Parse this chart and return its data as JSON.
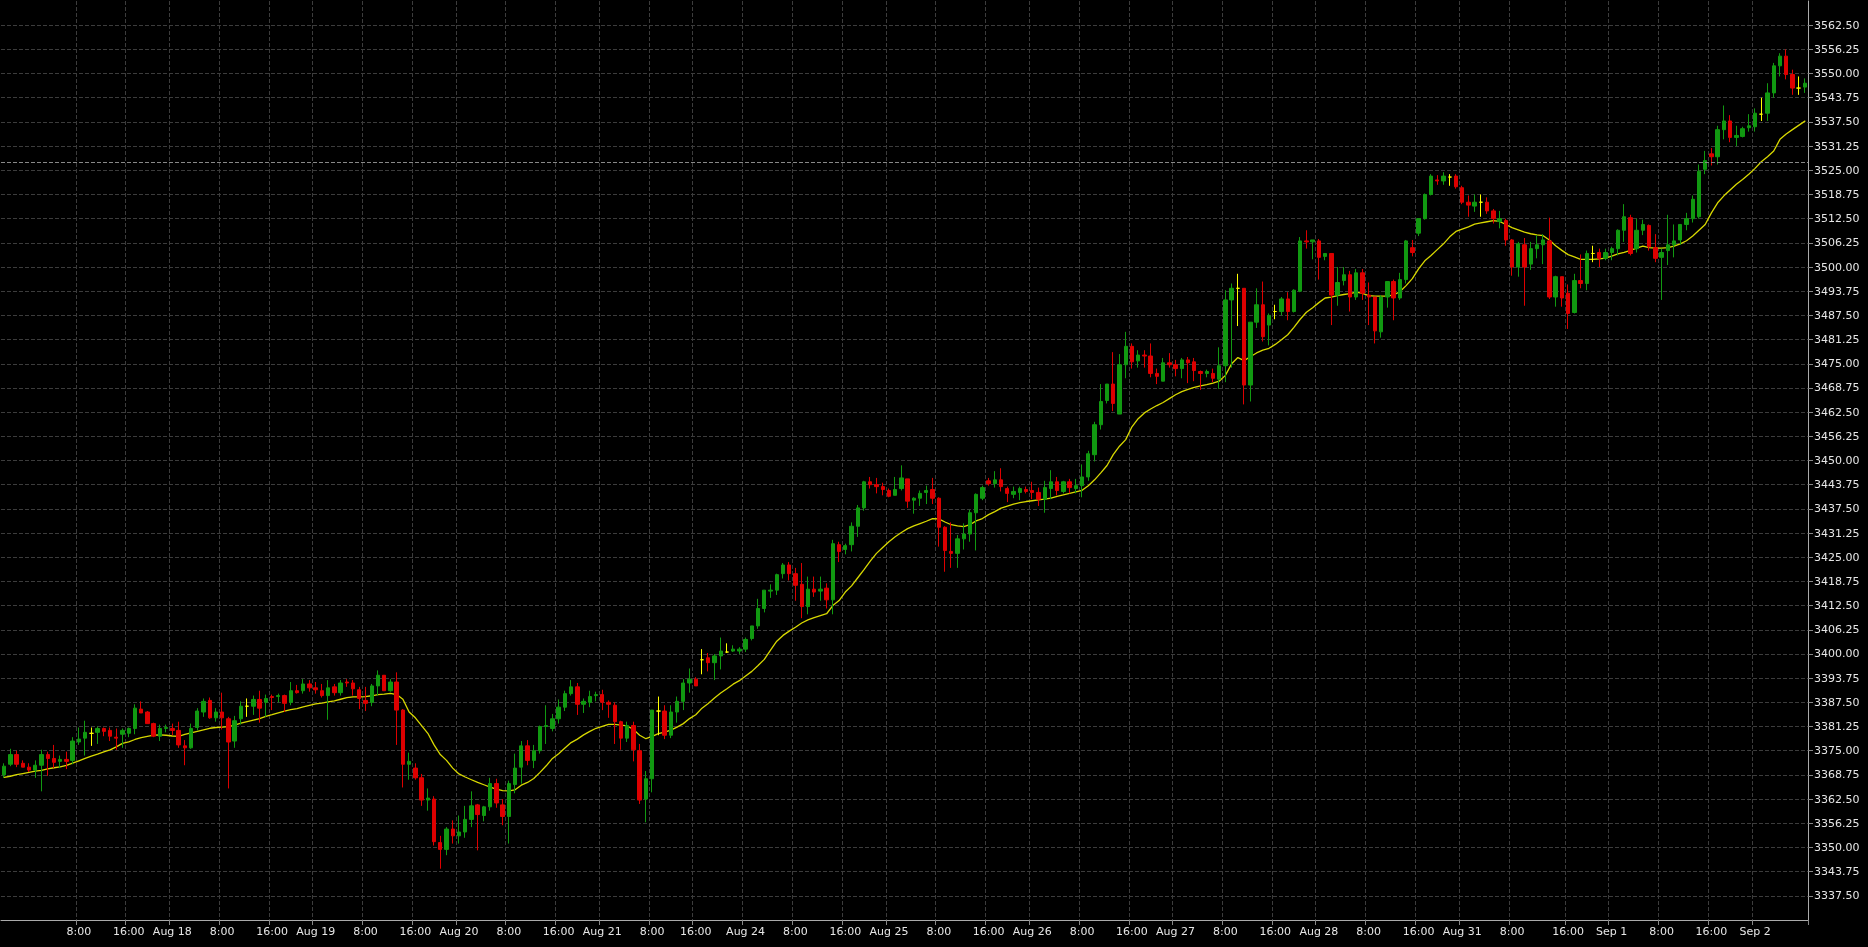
{
  "chart_data": {
    "type": "candlestick",
    "categories": [
      null,
      null,
      null,
      null,
      null,
      null,
      null,
      null,
      null,
      null,
      null,
      null,
      "8:00",
      null,
      null,
      null,
      null,
      null,
      null,
      null,
      "16:00",
      null,
      null,
      null,
      null,
      null,
      null,
      "Aug 18",
      null,
      null,
      null,
      null,
      null,
      null,
      null,
      "8:00",
      null,
      null,
      null,
      null,
      null,
      null,
      null,
      "16:00",
      null,
      null,
      null,
      null,
      null,
      null,
      "Aug 19",
      null,
      null,
      null,
      null,
      null,
      null,
      null,
      "8:00",
      null,
      null,
      null,
      null,
      null,
      null,
      null,
      "16:00",
      null,
      null,
      null,
      null,
      null,
      null,
      "Aug 20",
      null,
      null,
      null,
      null,
      null,
      null,
      null,
      "8:00",
      null,
      null,
      null,
      null,
      null,
      null,
      null,
      "16:00",
      null,
      null,
      null,
      null,
      null,
      null,
      "Aug 21",
      null,
      null,
      null,
      null,
      null,
      null,
      null,
      "8:00",
      null,
      null,
      null,
      null,
      null,
      null,
      "16:00",
      null,
      null,
      null,
      null,
      null,
      null,
      null,
      "Aug 24",
      null,
      null,
      null,
      null,
      null,
      null,
      null,
      "8:00",
      null,
      null,
      null,
      null,
      null,
      null,
      null,
      "16:00",
      null,
      null,
      null,
      null,
      null,
      null,
      "Aug 25",
      null,
      null,
      null,
      null,
      null,
      null,
      null,
      "8:00",
      null,
      null,
      null,
      null,
      null,
      null,
      null,
      "16:00",
      null,
      null,
      null,
      null,
      null,
      null,
      "Aug 26",
      null,
      null,
      null,
      null,
      null,
      null,
      null,
      "8:00",
      null,
      null,
      null,
      null,
      null,
      null,
      null,
      "16:00",
      null,
      null,
      null,
      null,
      null,
      null,
      "Aug 27",
      null,
      null,
      null,
      null,
      null,
      null,
      null,
      "8:00",
      null,
      null,
      null,
      null,
      null,
      null,
      null,
      "16:00",
      null,
      null,
      null,
      null,
      null,
      null,
      "Aug 28",
      null,
      null,
      null,
      null,
      null,
      null,
      null,
      "8:00",
      null,
      null,
      null,
      null,
      null,
      null,
      null,
      "16:00",
      null,
      null,
      null,
      null,
      null,
      null,
      "Aug 31",
      null,
      null,
      null,
      null,
      null,
      null,
      null,
      "8:00",
      null,
      null,
      null,
      null,
      null,
      null,
      null,
      null,
      "16:00",
      null,
      null,
      null,
      null,
      null,
      null,
      "Sep 1",
      null,
      null,
      null,
      null,
      null,
      null,
      null,
      "8:00",
      null,
      null,
      null,
      null,
      null,
      null,
      null,
      "16:00",
      null,
      null,
      null,
      null,
      null,
      null,
      "Sep 2",
      null,
      null,
      null,
      null,
      null,
      null,
      null,
      null
    ],
    "ohlc": [
      [
        3368.75,
        3371.75,
        3368,
        3371
      ],
      [
        3371.5,
        3375.5,
        3371,
        3374
      ],
      [
        3374,
        3375,
        3370.75,
        3371.5
      ],
      [
        3371.75,
        3372.5,
        3370.75,
        3370.75
      ],
      [
        3370.75,
        3371.75,
        3369.5,
        3370
      ],
      [
        3370,
        3372.5,
        3368,
        3371.25
      ],
      [
        3371.25,
        3375.25,
        3364.5,
        3374
      ],
      [
        3374,
        3374.75,
        3368.5,
        3373
      ],
      [
        3373,
        3376.5,
        3370.5,
        3372
      ],
      [
        3372.25,
        3373.75,
        3370.5,
        3372.75
      ],
      [
        3372.75,
        3374.75,
        3370.25,
        3372.25
      ],
      [
        3372.5,
        3378.5,
        3371.5,
        3377.5
      ],
      [
        3377.25,
        3381,
        3376.5,
        3378
      ],
      [
        3378.25,
        3382.75,
        3373.75,
        3379.75
      ],
      [
        3379.5,
        3381,
        3376.25,
        3379.5
      ],
      [
        3379.75,
        3381.25,
        3376.75,
        3380.75
      ],
      [
        3380.75,
        3381,
        3378.75,
        3380
      ],
      [
        3380.25,
        3381,
        3377.5,
        3378.75
      ],
      [
        3378.5,
        3380.75,
        3375.25,
        3378.25
      ],
      [
        3379.25,
        3380.75,
        3375.75,
        3380.25
      ],
      [
        3379.5,
        3381,
        3378.5,
        3380.75
      ],
      [
        3380.75,
        3387,
        3379.25,
        3386
      ],
      [
        3385.75,
        3387.75,
        3384.75,
        3384.75
      ],
      [
        3385,
        3385.25,
        3382,
        3382
      ],
      [
        3382,
        3382.25,
        3378.5,
        3378.75
      ],
      [
        3378.75,
        3381.75,
        3377.5,
        3380.75
      ],
      [
        3380.75,
        3381.75,
        3379.75,
        3381
      ],
      [
        3380.75,
        3382,
        3379,
        3380.25
      ],
      [
        3380.25,
        3382.5,
        3375.75,
        3376.5
      ],
      [
        3376.25,
        3377.75,
        3371.25,
        3375.75
      ],
      [
        3375.75,
        3382,
        3375.5,
        3380.75
      ],
      [
        3381,
        3386,
        3380.25,
        3385.25
      ],
      [
        3385,
        3388.5,
        3383.75,
        3387.75
      ],
      [
        3388,
        3388.75,
        3383.25,
        3383.5
      ],
      [
        3383.5,
        3386,
        3382.5,
        3385
      ],
      [
        3385,
        3390,
        3380.5,
        3383.5
      ],
      [
        3383.25,
        3383.75,
        3365.25,
        3377.25
      ],
      [
        3377.5,
        3384,
        3375.75,
        3382.75
      ],
      [
        3383.25,
        3387.75,
        3381.75,
        3386.5
      ],
      [
        3386.5,
        3388.5,
        3383.75,
        3386.5
      ],
      [
        3386.5,
        3389.25,
        3384.25,
        3388.25
      ],
      [
        3388.25,
        3390.5,
        3382.25,
        3386
      ],
      [
        3387.5,
        3389.5,
        3383.75,
        3388.5
      ],
      [
        3389,
        3389.5,
        3385.5,
        3388.75
      ],
      [
        3389,
        3389.75,
        3387.5,
        3389.25
      ],
      [
        3389.25,
        3389.5,
        3385,
        3387.25
      ],
      [
        3387.5,
        3392.75,
        3386.75,
        3390.5
      ],
      [
        3390.5,
        3392,
        3389.75,
        3390
      ],
      [
        3390.5,
        3393.5,
        3389.75,
        3392.25
      ],
      [
        3392.25,
        3393.25,
        3390.25,
        3391.25
      ],
      [
        3391.25,
        3392.75,
        3389.75,
        3390.75
      ],
      [
        3390.5,
        3392.25,
        3388.75,
        3389.25
      ],
      [
        3389.25,
        3393.25,
        3383,
        3391.25
      ],
      [
        3391.5,
        3392.25,
        3389.25,
        3390
      ],
      [
        3390,
        3393.25,
        3389.25,
        3392.5
      ],
      [
        3392.75,
        3393.5,
        3391.5,
        3392.5
      ],
      [
        3392.5,
        3393.25,
        3389.25,
        3391
      ],
      [
        3390.75,
        3391.5,
        3385.75,
        3388.5
      ],
      [
        3388,
        3391.5,
        3385.25,
        3387.25
      ],
      [
        3387.5,
        3392.25,
        3386.5,
        3391.75
      ],
      [
        3391.75,
        3395.75,
        3389.25,
        3394.5
      ],
      [
        3394.5,
        3394.5,
        3390.5,
        3390.5
      ],
      [
        3390.5,
        3393.5,
        3390.25,
        3392.75
      ],
      [
        3392.75,
        3395.25,
        3376.5,
        3385.5
      ],
      [
        3385.5,
        3385.75,
        3365.5,
        3371.5
      ],
      [
        3371.5,
        3374.5,
        3367.5,
        3372.25
      ],
      [
        3370.5,
        3371.75,
        3367.5,
        3368
      ],
      [
        3368,
        3369,
        3360.75,
        3362.25
      ],
      [
        3362.25,
        3365.25,
        3359.5,
        3362.75
      ],
      [
        3362.5,
        3363.25,
        3350.5,
        3351.5
      ],
      [
        3351.25,
        3353,
        3344.5,
        3349.5
      ],
      [
        3349.5,
        3355.25,
        3348,
        3354.75
      ],
      [
        3354.75,
        3357,
        3351,
        3353
      ],
      [
        3353,
        3358.25,
        3351,
        3354
      ],
      [
        3354,
        3360.75,
        3352.5,
        3357.25
      ],
      [
        3357.25,
        3364.5,
        3355.25,
        3360.75
      ],
      [
        3361,
        3361.25,
        3349.25,
        3358.5
      ],
      [
        3358.25,
        3360.75,
        3356.75,
        3360.5
      ],
      [
        3360.5,
        3368,
        3359.5,
        3366.5
      ],
      [
        3366.5,
        3367.75,
        3360.25,
        3361.5
      ],
      [
        3361,
        3362.5,
        3355.75,
        3358
      ],
      [
        3358,
        3367.25,
        3351,
        3366.5
      ],
      [
        3366.25,
        3374.25,
        3364,
        3370.5
      ],
      [
        3370.75,
        3377.5,
        3366.5,
        3376.25
      ],
      [
        3376.25,
        3377.75,
        3371.25,
        3372.5
      ],
      [
        3372.5,
        3376.5,
        3370.5,
        3375
      ],
      [
        3375,
        3381.5,
        3374.25,
        3381.25
      ],
      [
        3381.25,
        3386.75,
        3376.75,
        3381.5
      ],
      [
        3380.75,
        3384.5,
        3380,
        3383.25
      ],
      [
        3383.25,
        3388.25,
        3382,
        3386.25
      ],
      [
        3386.25,
        3390.5,
        3385.25,
        3389.75
      ],
      [
        3389.75,
        3393.25,
        3389.25,
        3391.5
      ],
      [
        3391.5,
        3392.5,
        3384.25,
        3387
      ],
      [
        3387,
        3388.5,
        3384.75,
        3387.75
      ],
      [
        3387.5,
        3390.5,
        3386.25,
        3389
      ],
      [
        3389.25,
        3390.25,
        3387.75,
        3389.5
      ],
      [
        3389.5,
        3390.75,
        3385.5,
        3387.5
      ],
      [
        3387.5,
        3388,
        3383.5,
        3387
      ],
      [
        3386.75,
        3387.5,
        3376.75,
        3382.5
      ],
      [
        3382.5,
        3382.75,
        3375.25,
        3378.25
      ],
      [
        3378.25,
        3382.5,
        3377.25,
        3381.5
      ],
      [
        3381.5,
        3382.5,
        3372.25,
        3375.25
      ],
      [
        3375,
        3376.75,
        3361.25,
        3362.25
      ],
      [
        3362.5,
        3369.75,
        3356.5,
        3367.75
      ],
      [
        3367.75,
        3385.5,
        3364.25,
        3385.5
      ],
      [
        3385.25,
        3389,
        3379,
        3385.25
      ],
      [
        3385.25,
        3386.75,
        3378,
        3379
      ],
      [
        3379,
        3386.75,
        3378.25,
        3385
      ],
      [
        3385,
        3389,
        3382.25,
        3387.75
      ],
      [
        3387.75,
        3393.5,
        3385.5,
        3392.5
      ],
      [
        3392.5,
        3396.25,
        3390,
        3393.5
      ],
      [
        3393.5,
        3394,
        3391.75,
        3391.75
      ],
      [
        3398.5,
        3401.25,
        3394.75,
        3398.5
      ],
      [
        3399,
        3400.25,
        3395.5,
        3397.75
      ],
      [
        3397.75,
        3400,
        3393.25,
        3399.5
      ],
      [
        3399.5,
        3404.25,
        3396,
        3400.75
      ],
      [
        3400.5,
        3402.75,
        3400.25,
        3400.5
      ],
      [
        3400.75,
        3402.25,
        3400.5,
        3401.25
      ],
      [
        3400.75,
        3401.75,
        3400,
        3401.25
      ],
      [
        3401.25,
        3404.25,
        3400.5,
        3403.75
      ],
      [
        3404,
        3407.25,
        3403.5,
        3407.25
      ],
      [
        3407.25,
        3414.25,
        3406.5,
        3411.75
      ],
      [
        3411.75,
        3416.5,
        3410.75,
        3416.5
      ],
      [
        3416.25,
        3418,
        3414.5,
        3416.5
      ],
      [
        3416.5,
        3420.75,
        3415.25,
        3420.5
      ],
      [
        3420.75,
        3423.5,
        3419.5,
        3423
      ],
      [
        3423,
        3423.75,
        3419,
        3420.75
      ],
      [
        3420.75,
        3422.25,
        3413.75,
        3417.75
      ],
      [
        3418,
        3423.5,
        3409.25,
        3412.25
      ],
      [
        3412.25,
        3420,
        3410.25,
        3416.75
      ],
      [
        3416.75,
        3420,
        3414.75,
        3416
      ],
      [
        3416.25,
        3420,
        3413.75,
        3416.75
      ],
      [
        3417,
        3418.25,
        3411.75,
        3414
      ],
      [
        3414,
        3429.5,
        3410.25,
        3428.5
      ],
      [
        3428.25,
        3429,
        3423.75,
        3426.5
      ],
      [
        3427,
        3428.5,
        3425.75,
        3428
      ],
      [
        3428.25,
        3434,
        3426.5,
        3433
      ],
      [
        3433,
        3438.5,
        3430.25,
        3437.75
      ],
      [
        3437.75,
        3444.75,
        3437,
        3444.5
      ],
      [
        3444.5,
        3445.75,
        3442.75,
        3443.75
      ],
      [
        3443.75,
        3445.5,
        3441.5,
        3443.25
      ],
      [
        3443.25,
        3444.25,
        3441,
        3442.5
      ],
      [
        3442.25,
        3442.75,
        3440.5,
        3440.75
      ],
      [
        3441,
        3445.75,
        3441,
        3442.5
      ],
      [
        3442.75,
        3448.75,
        3442.25,
        3445.5
      ],
      [
        3445.25,
        3445.25,
        3437.75,
        3439.5
      ],
      [
        3439.75,
        3440.5,
        3436.25,
        3440.25
      ],
      [
        3440.25,
        3442.25,
        3438.25,
        3441.5
      ],
      [
        3441.75,
        3443.5,
        3438.75,
        3442.25
      ],
      [
        3442.5,
        3445.5,
        3438.75,
        3440.25
      ],
      [
        3440.25,
        3440.5,
        3427.75,
        3432.75
      ],
      [
        3432.75,
        3433,
        3421.25,
        3426.75
      ],
      [
        3426.5,
        3434,
        3422.25,
        3426
      ],
      [
        3426,
        3430.75,
        3422.25,
        3429.75
      ],
      [
        3429.75,
        3433.75,
        3427,
        3431
      ],
      [
        3431,
        3437.25,
        3429,
        3436.5
      ],
      [
        3436.5,
        3441.5,
        3426.75,
        3441.25
      ],
      [
        3440.25,
        3443.5,
        3439.75,
        3443
      ],
      [
        3444.75,
        3445.5,
        3443.5,
        3444
      ],
      [
        3444,
        3447.25,
        3443,
        3445
      ],
      [
        3445,
        3448,
        3442,
        3443.25
      ],
      [
        3442.75,
        3443.25,
        3439.25,
        3441.5
      ],
      [
        3441.25,
        3443.25,
        3440.25,
        3442
      ],
      [
        3441.75,
        3443.25,
        3439.75,
        3442.75
      ],
      [
        3442.5,
        3443.25,
        3441.5,
        3442
      ],
      [
        3442.25,
        3444.5,
        3440,
        3441.75
      ],
      [
        3441.75,
        3443,
        3438.25,
        3440
      ],
      [
        3440,
        3444.75,
        3436.5,
        3443
      ],
      [
        3442.75,
        3447.5,
        3440,
        3444.5
      ],
      [
        3444.5,
        3445.75,
        3441,
        3442.25
      ],
      [
        3442,
        3444.75,
        3441.5,
        3444.5
      ],
      [
        3444.5,
        3445.25,
        3441.5,
        3443
      ],
      [
        3442.75,
        3445.25,
        3441.5,
        3443.5
      ],
      [
        3443.5,
        3449,
        3440.5,
        3445.75
      ],
      [
        3445.75,
        3452.5,
        3444.75,
        3451.75
      ],
      [
        3451.5,
        3460,
        3449.75,
        3459.25
      ],
      [
        3459.25,
        3469.75,
        3458,
        3465.25
      ],
      [
        3465.5,
        3469.75,
        3464.75,
        3469.75
      ],
      [
        3469.75,
        3478,
        3462.75,
        3464.75
      ],
      [
        3462,
        3477.5,
        3462,
        3474.75
      ],
      [
        3474.75,
        3483.25,
        3471.25,
        3479.5
      ],
      [
        3479.5,
        3480.25,
        3473.75,
        3475.5
      ],
      [
        3475.75,
        3478.5,
        3474,
        3477.25
      ],
      [
        3477.25,
        3478.5,
        3474,
        3477
      ],
      [
        3477,
        3480.25,
        3471.5,
        3472.5
      ],
      [
        3472.5,
        3473.75,
        3469.75,
        3471.75
      ],
      [
        3470.5,
        3476.5,
        3470.5,
        3475.25
      ],
      [
        3475.25,
        3477.75,
        3474,
        3474.75
      ],
      [
        3474.75,
        3476,
        3471.75,
        3473.75
      ],
      [
        3473.75,
        3476.5,
        3471.25,
        3476
      ],
      [
        3476,
        3476.75,
        3470,
        3475.25
      ],
      [
        3475.5,
        3476.5,
        3470.5,
        3473.25
      ],
      [
        3473,
        3473.25,
        3468.25,
        3472.5
      ],
      [
        3472.5,
        3473.5,
        3471.5,
        3473
      ],
      [
        3472.5,
        3473.75,
        3470.25,
        3471.25
      ],
      [
        3471,
        3479.25,
        3468.5,
        3474.5
      ],
      [
        3474.5,
        3494,
        3470.25,
        3491.5
      ],
      [
        3491.5,
        3495.75,
        3474,
        3494.5
      ],
      [
        3494.5,
        3498.25,
        3484.75,
        3494.5
      ],
      [
        3494.5,
        3494.5,
        3464.5,
        3469.5
      ],
      [
        3469.5,
        3485.75,
        3465.25,
        3485.75
      ],
      [
        3485.75,
        3494.5,
        3484.25,
        3490.25
      ],
      [
        3490.25,
        3496.25,
        3480.75,
        3482
      ],
      [
        3485,
        3488,
        3479.75,
        3487.5
      ],
      [
        3488.5,
        3490.25,
        3486.5,
        3488.5
      ],
      [
        3488.5,
        3492.25,
        3487.5,
        3491.75
      ],
      [
        3491.75,
        3493.5,
        3486.25,
        3488.5
      ],
      [
        3488.5,
        3494.25,
        3488.25,
        3494
      ],
      [
        3493.75,
        3507.75,
        3493.5,
        3506.75
      ],
      [
        3506.75,
        3509.5,
        3504.75,
        3506.5
      ],
      [
        3506.5,
        3507,
        3502,
        3507
      ],
      [
        3506.75,
        3507.25,
        3496.75,
        3502.5
      ],
      [
        3502.75,
        3503.5,
        3501.75,
        3503.5
      ],
      [
        3503.5,
        3503.5,
        3485,
        3492.75
      ],
      [
        3492.75,
        3500,
        3490,
        3496
      ],
      [
        3496.5,
        3500,
        3495.25,
        3498
      ],
      [
        3498,
        3499,
        3488.5,
        3492.25
      ],
      [
        3492.25,
        3499.5,
        3491.5,
        3498.5
      ],
      [
        3498.5,
        3499.5,
        3491.5,
        3493.25
      ],
      [
        3492.75,
        3496,
        3485,
        3492.25
      ],
      [
        3492.25,
        3492.25,
        3480.25,
        3483.5
      ],
      [
        3483.25,
        3492.75,
        3481.75,
        3492.25
      ],
      [
        3492.25,
        3496.25,
        3489.5,
        3496.25
      ],
      [
        3496.25,
        3496.75,
        3486.25,
        3492
      ],
      [
        3492,
        3498.5,
        3491.5,
        3496.75
      ],
      [
        3496.75,
        3507,
        3495.75,
        3506.75
      ],
      [
        3505,
        3507,
        3502.75,
        3503.75
      ],
      [
        3508.75,
        3512.5,
        3508,
        3512.5
      ],
      [
        3512.5,
        3519,
        3512.25,
        3518.75
      ],
      [
        3518.75,
        3524,
        3518.5,
        3523.5
      ],
      [
        3522.5,
        3523.75,
        3521.25,
        3522.25
      ],
      [
        3522.25,
        3524.5,
        3521.25,
        3523.5
      ],
      [
        3523.25,
        3524,
        3521,
        3523.25
      ],
      [
        3523.5,
        3524,
        3520.25,
        3520.75
      ],
      [
        3520.5,
        3521,
        3516.25,
        3516.75
      ],
      [
        3516.75,
        3518.5,
        3513,
        3516
      ],
      [
        3515.75,
        3518.75,
        3514.25,
        3516.75
      ],
      [
        3516.75,
        3518.75,
        3513,
        3516.75
      ],
      [
        3516.75,
        3518,
        3513.75,
        3514.5
      ],
      [
        3514.5,
        3515,
        3511.25,
        3512.5
      ],
      [
        3511.75,
        3514.5,
        3510,
        3512.5
      ],
      [
        3512,
        3512.5,
        3505.5,
        3507
      ],
      [
        3507,
        3507.25,
        3497.75,
        3500
      ],
      [
        3500,
        3506.5,
        3497.5,
        3506
      ],
      [
        3505.75,
        3507.5,
        3490,
        3500
      ],
      [
        3500.75,
        3506.5,
        3499.25,
        3504.75
      ],
      [
        3504.75,
        3508.25,
        3502.25,
        3505.75
      ],
      [
        3505.75,
        3508.5,
        3500.75,
        3507
      ],
      [
        3506.75,
        3512.75,
        3491.75,
        3492.25
      ],
      [
        3492.25,
        3497.75,
        3489.75,
        3497.5
      ],
      [
        3497.5,
        3497.5,
        3489.75,
        3492
      ],
      [
        3493.25,
        3495.5,
        3484,
        3488
      ],
      [
        3488.25,
        3498.25,
        3488,
        3496.5
      ],
      [
        3496.5,
        3503.25,
        3494.5,
        3495.75
      ],
      [
        3495.75,
        3504.25,
        3494,
        3503.5
      ],
      [
        3503.5,
        3505.5,
        3501.25,
        3503.5
      ],
      [
        3503.75,
        3504.75,
        3500,
        3502.25
      ],
      [
        3502.25,
        3504.75,
        3501.75,
        3503.75
      ],
      [
        3503.75,
        3505.25,
        3501.75,
        3504.75
      ],
      [
        3504.75,
        3509.75,
        3503,
        3509.5
      ],
      [
        3509.5,
        3516.25,
        3506.5,
        3513
      ],
      [
        3512.75,
        3513.5,
        3503,
        3503.5
      ],
      [
        3504.75,
        3512.5,
        3503.75,
        3509.5
      ],
      [
        3509.5,
        3512.25,
        3508.25,
        3511
      ],
      [
        3510.75,
        3511,
        3504.25,
        3505.25
      ],
      [
        3505,
        3508.5,
        3501.25,
        3502.25
      ],
      [
        3502.5,
        3504.75,
        3491.5,
        3503.75
      ],
      [
        3504.25,
        3513.5,
        3500.5,
        3505.75
      ],
      [
        3505.75,
        3511,
        3502.5,
        3506.75
      ],
      [
        3507,
        3511,
        3505.75,
        3511
      ],
      [
        3511,
        3514,
        3509.5,
        3512.5
      ],
      [
        3512.5,
        3518.5,
        3511.5,
        3517.5
      ],
      [
        3513,
        3526.5,
        3512.5,
        3524.75
      ],
      [
        3525.25,
        3530,
        3524,
        3527.5
      ],
      [
        3529.25,
        3530.75,
        3526.25,
        3528.5
      ],
      [
        3528.5,
        3536.5,
        3526.5,
        3535.5
      ],
      [
        3535.5,
        3541.75,
        3533,
        3537.75
      ],
      [
        3537.75,
        3539.25,
        3532.25,
        3533.5
      ],
      [
        3533.5,
        3536.5,
        3531.25,
        3534
      ],
      [
        3533.75,
        3536.25,
        3533.5,
        3535.75
      ],
      [
        3536,
        3539.5,
        3535,
        3536.5
      ],
      [
        3536.25,
        3541,
        3535,
        3539.75
      ],
      [
        3539.5,
        3543.75,
        3537.75,
        3539.5
      ],
      [
        3539.75,
        3547.5,
        3537.75,
        3545
      ],
      [
        3545,
        3552.75,
        3543.75,
        3552
      ],
      [
        3552,
        3555.25,
        3549.25,
        3554.5
      ],
      [
        3554.5,
        3556.25,
        3548.5,
        3549.75
      ],
      [
        3549.75,
        3551,
        3544.5,
        3546.25
      ],
      [
        3546.25,
        3549.25,
        3544.5,
        3546.25
      ],
      [
        3546.5,
        3548.75,
        3545,
        3547.5
      ]
    ],
    "colors": [
      "#119911",
      "#119911",
      "#dd0000",
      "#dd0000",
      "#dd0000",
      "#119911",
      "#119911",
      "#dd0000",
      "#dd0000",
      "#119911",
      "#dd0000",
      "#119911",
      "#119911",
      "#119911",
      "#ffff00",
      "#119911",
      "#dd0000",
      "#dd0000",
      "#dd0000",
      "#119911",
      "#119911",
      "#119911",
      "#dd0000",
      "#dd0000",
      "#dd0000",
      "#119911",
      "#119911",
      "#dd0000",
      "#dd0000",
      "#dd0000",
      "#119911",
      "#119911",
      "#119911",
      "#dd0000",
      "#119911",
      "#dd0000",
      "#dd0000",
      "#119911",
      "#119911",
      "#ffff00",
      "#119911",
      "#dd0000",
      "#119911",
      "#dd0000",
      "#119911",
      "#dd0000",
      "#119911",
      "#dd0000",
      "#119911",
      "#dd0000",
      "#dd0000",
      "#dd0000",
      "#119911",
      "#dd0000",
      "#119911",
      "#dd0000",
      "#dd0000",
      "#dd0000",
      "#dd0000",
      "#119911",
      "#119911",
      "#dd0000",
      "#119911",
      "#dd0000",
      "#dd0000",
      "#119911",
      "#dd0000",
      "#dd0000",
      "#119911",
      "#dd0000",
      "#dd0000",
      "#119911",
      "#dd0000",
      "#119911",
      "#119911",
      "#119911",
      "#dd0000",
      "#119911",
      "#119911",
      "#dd0000",
      "#dd0000",
      "#119911",
      "#119911",
      "#119911",
      "#dd0000",
      "#119911",
      "#119911",
      "#119911",
      "#119911",
      "#119911",
      "#119911",
      "#119911",
      "#dd0000",
      "#119911",
      "#119911",
      "#119911",
      "#dd0000",
      "#dd0000",
      "#dd0000",
      "#dd0000",
      "#119911",
      "#dd0000",
      "#dd0000",
      "#119911",
      "#119911",
      "#ffff00",
      "#dd0000",
      "#119911",
      "#119911",
      "#119911",
      "#119911",
      "#dd0000",
      "#ffff00",
      "#dd0000",
      "#119911",
      "#119911",
      "#ffff00",
      "#119911",
      "#119911",
      "#119911",
      "#119911",
      "#119911",
      "#119911",
      "#119911",
      "#119911",
      "#119911",
      "#dd0000",
      "#dd0000",
      "#dd0000",
      "#119911",
      "#dd0000",
      "#119911",
      "#dd0000",
      "#119911",
      "#dd0000",
      "#119911",
      "#119911",
      "#119911",
      "#119911",
      "#dd0000",
      "#dd0000",
      "#dd0000",
      "#dd0000",
      "#119911",
      "#119911",
      "#dd0000",
      "#119911",
      "#119911",
      "#119911",
      "#dd0000",
      "#dd0000",
      "#dd0000",
      "#dd0000",
      "#119911",
      "#119911",
      "#119911",
      "#119911",
      "#119911",
      "#dd0000",
      "#119911",
      "#dd0000",
      "#dd0000",
      "#119911",
      "#119911",
      "#dd0000",
      "#dd0000",
      "#dd0000",
      "#119911",
      "#119911",
      "#dd0000",
      "#119911",
      "#dd0000",
      "#119911",
      "#119911",
      "#119911",
      "#119911",
      "#119911",
      "#119911",
      "#dd0000",
      "#119911",
      "#119911",
      "#dd0000",
      "#119911",
      "#dd0000",
      "#dd0000",
      "#dd0000",
      "#119911",
      "#dd0000",
      "#dd0000",
      "#119911",
      "#dd0000",
      "#dd0000",
      "#dd0000",
      "#119911",
      "#dd0000",
      "#119911",
      "#119911",
      "#119911",
      "#ffff00",
      "#dd0000",
      "#119911",
      "#119911",
      "#dd0000",
      "#119911",
      "#ffff00",
      "#119911",
      "#dd0000",
      "#119911",
      "#119911",
      "#dd0000",
      "#119911",
      "#dd0000",
      "#119911",
      "#dd0000",
      "#119911",
      "#119911",
      "#dd0000",
      "#119911",
      "#dd0000",
      "#dd0000",
      "#dd0000",
      "#119911",
      "#119911",
      "#dd0000",
      "#119911",
      "#119911",
      "#dd0000",
      "#119911",
      "#119911",
      "#119911",
      "#dd0000",
      "#119911",
      "#ffff00",
      "#dd0000",
      "#dd0000",
      "#dd0000",
      "#119911",
      "#ffff00",
      "#dd0000",
      "#dd0000",
      "#119911",
      "#dd0000",
      "#dd0000",
      "#119911",
      "#dd0000",
      "#119911",
      "#119911",
      "#119911",
      "#dd0000",
      "#119911",
      "#dd0000",
      "#dd0000",
      "#119911",
      "#dd0000",
      "#119911",
      "#ffff00",
      "#dd0000",
      "#119911",
      "#119911",
      "#119911",
      "#119911",
      "#dd0000",
      "#119911",
      "#119911",
      "#dd0000",
      "#dd0000",
      "#119911",
      "#119911",
      "#119911",
      "#119911",
      "#119911",
      "#119911",
      "#119911",
      "#119911",
      "#dd0000",
      "#119911",
      "#119911",
      "#dd0000",
      "#119911",
      "#119911",
      "#119911",
      "#119911",
      "#ffff00",
      "#119911",
      "#119911",
      "#119911",
      "#dd0000",
      "#dd0000",
      "#ffff00",
      "#119911"
    ],
    "series": [
      {
        "type": "line",
        "color": "#d8d800",
        "values": [
          3368.1,
          3368.4,
          3368.8,
          3369.1,
          3369.4,
          3369.7,
          3369.9,
          3370.3,
          3370.6,
          3370.8,
          3371.2,
          3371.8,
          3372.4,
          3373,
          3373.6,
          3374.1,
          3374.7,
          3375.2,
          3376,
          3376.9,
          3377.3,
          3377.9,
          3378.4,
          3378.7,
          3379,
          3379.1,
          3379,
          3378.8,
          3378.7,
          3379.2,
          3379.6,
          3380,
          3380.4,
          3380.8,
          3381,
          3381.1,
          3381.2,
          3381.6,
          3382.1,
          3382.5,
          3382.9,
          3383.3,
          3383.9,
          3384.3,
          3384.8,
          3385.2,
          3385.6,
          3385.9,
          3386.3,
          3386.7,
          3387.1,
          3387.3,
          3387.6,
          3387.9,
          3388.3,
          3388.7,
          3388.9,
          3388.9,
          3389,
          3389.2,
          3389.5,
          3389.6,
          3389.8,
          3389.5,
          3388.3,
          3385,
          3383.5,
          3381.5,
          3379.5,
          3376.5,
          3374,
          3372.5,
          3370.5,
          3369,
          3368.2,
          3367.5,
          3366.8,
          3366.2,
          3365.6,
          3365.1,
          3364.7,
          3364.6,
          3364.9,
          3366.1,
          3366.8,
          3367.8,
          3369.4,
          3371.1,
          3373,
          3374.2,
          3375.7,
          3377.1,
          3378,
          3379.1,
          3380,
          3380.8,
          3381.3,
          3381.8,
          3381.8,
          3381.6,
          3381.4,
          3380.5,
          3379,
          3378.1,
          3378.7,
          3379.4,
          3379.8,
          3380.3,
          3381.1,
          3382,
          3383.3,
          3384.3,
          3386,
          3387.2,
          3388.6,
          3389.9,
          3391,
          3392.2,
          3393.1,
          3394.3,
          3395.5,
          3397,
          3398.6,
          3401,
          3403.3,
          3404.8,
          3405.9,
          3406.9,
          3408,
          3408.8,
          3409.4,
          3409.9,
          3410.4,
          3412.5,
          3413.8,
          3416,
          3417.6,
          3419.7,
          3421.8,
          3424,
          3426,
          3427.5,
          3429,
          3430.3,
          3431.4,
          3432.4,
          3433.1,
          3433.7,
          3434.3,
          3435,
          3434.9,
          3434.1,
          3433.4,
          3433.1,
          3432.9,
          3433.4,
          3434.4,
          3435,
          3436,
          3436.8,
          3437.7,
          3438.2,
          3438.7,
          3439.1,
          3439.4,
          3439.6,
          3439.8,
          3440,
          3440.3,
          3440.7,
          3441.1,
          3441.5,
          3441.9,
          3442.3,
          3443.5,
          3445,
          3446.8,
          3448.7,
          3451.5,
          3453.7,
          3455.4,
          3458.7,
          3460.8,
          3462.3,
          3463.3,
          3464.2,
          3465,
          3466,
          3467,
          3467.8,
          3468.4,
          3468.9,
          3469.3,
          3469.6,
          3470,
          3470.5,
          3472,
          3475,
          3476.6,
          3475.8,
          3476.8,
          3477.8,
          3478.5,
          3479,
          3480,
          3481.2,
          3482.5,
          3484.4,
          3486.5,
          3488.3,
          3489.5,
          3490.8,
          3492,
          3492.2,
          3492.6,
          3492.9,
          3493.1,
          3493.5,
          3493.2,
          3492.6,
          3492.5,
          3492.5,
          3492.5,
          3492.8,
          3493.6,
          3495.2,
          3497,
          3499.5,
          3501.6,
          3503,
          3504.5,
          3506,
          3507.8,
          3509.2,
          3509.8,
          3510.4,
          3511.1,
          3511.4,
          3511.7,
          3512,
          3511.8,
          3511,
          3510.2,
          3509.6,
          3509,
          3508.6,
          3508.3,
          3508.1,
          3507,
          3505.5,
          3504.3,
          3503.2,
          3502.6,
          3502,
          3502,
          3502,
          3502.1,
          3502.3,
          3502.8,
          3503.4,
          3503.8,
          3504.3,
          3504.9,
          3505.4,
          3505,
          3504.9,
          3504.9,
          3505,
          3505.4,
          3506,
          3506.8,
          3508,
          3509.5,
          3511,
          3514,
          3516.6,
          3518.4,
          3519.9,
          3521.4,
          3522.6,
          3524,
          3525.5,
          3527.2,
          3528.5,
          3530,
          3533,
          3534.4,
          3535.5,
          3536.6,
          3537.7
        ]
      }
    ],
    "ylim": [
      3331.25,
      3568.75
    ],
    "yticks": [
      {
        "value": 3337.5,
        "label": "3337.50"
      },
      {
        "value": 3343.75,
        "label": "3343.75"
      },
      {
        "value": 3350,
        "label": "3350.00"
      },
      {
        "value": 3356.25,
        "label": "3356.25"
      },
      {
        "value": 3362.5,
        "label": "3362.50"
      },
      {
        "value": 3368.75,
        "label": "3368.75"
      },
      {
        "value": 3375,
        "label": "3375.00"
      },
      {
        "value": 3381.25,
        "label": "3381.25"
      },
      {
        "value": 3387.5,
        "label": "3387.50"
      },
      {
        "value": 3393.75,
        "label": "3393.75"
      },
      {
        "value": 3400,
        "label": "3400.00"
      },
      {
        "value": 3406.25,
        "label": "3406.25"
      },
      {
        "value": 3412.5,
        "label": "3412.50"
      },
      {
        "value": 3418.75,
        "label": "3418.75"
      },
      {
        "value": 3425,
        "label": "3425.00"
      },
      {
        "value": 3431.25,
        "label": "3431.25"
      },
      {
        "value": 3437.5,
        "label": "3437.50"
      },
      {
        "value": 3443.75,
        "label": "3443.75"
      },
      {
        "value": 3450,
        "label": "3450.00"
      },
      {
        "value": 3456.25,
        "label": "3456.25"
      },
      {
        "value": 3462.5,
        "label": "3462.50"
      },
      {
        "value": 3468.75,
        "label": "3468.75"
      },
      {
        "value": 3475,
        "label": "3475.00"
      },
      {
        "value": 3481.25,
        "label": "3481.25"
      },
      {
        "value": 3487.5,
        "label": "3487.50"
      },
      {
        "value": 3493.75,
        "label": "3493.75"
      },
      {
        "value": 3500,
        "label": "3500.00"
      },
      {
        "value": 3506.25,
        "label": "3506.25"
      },
      {
        "value": 3512.5,
        "label": "3512.50"
      },
      {
        "value": 3518.75,
        "label": "3518.75"
      },
      {
        "value": 3525,
        "label": "3525.00"
      },
      {
        "value": 3531.25,
        "label": "3531.25"
      },
      {
        "value": 3537.5,
        "label": "3537.50"
      },
      {
        "value": 3543.75,
        "label": "3543.75"
      },
      {
        "value": 3550,
        "label": "3550.00"
      },
      {
        "value": 3556.25,
        "label": "3556.25"
      },
      {
        "value": 3562.5,
        "label": "3562.50"
      }
    ],
    "ref_lines": [
      {
        "axis": "y",
        "value": 3527,
        "color": "#888888",
        "line_style": "dashed"
      }
    ],
    "grid": true,
    "marker": "none",
    "line_style": "solid"
  }
}
